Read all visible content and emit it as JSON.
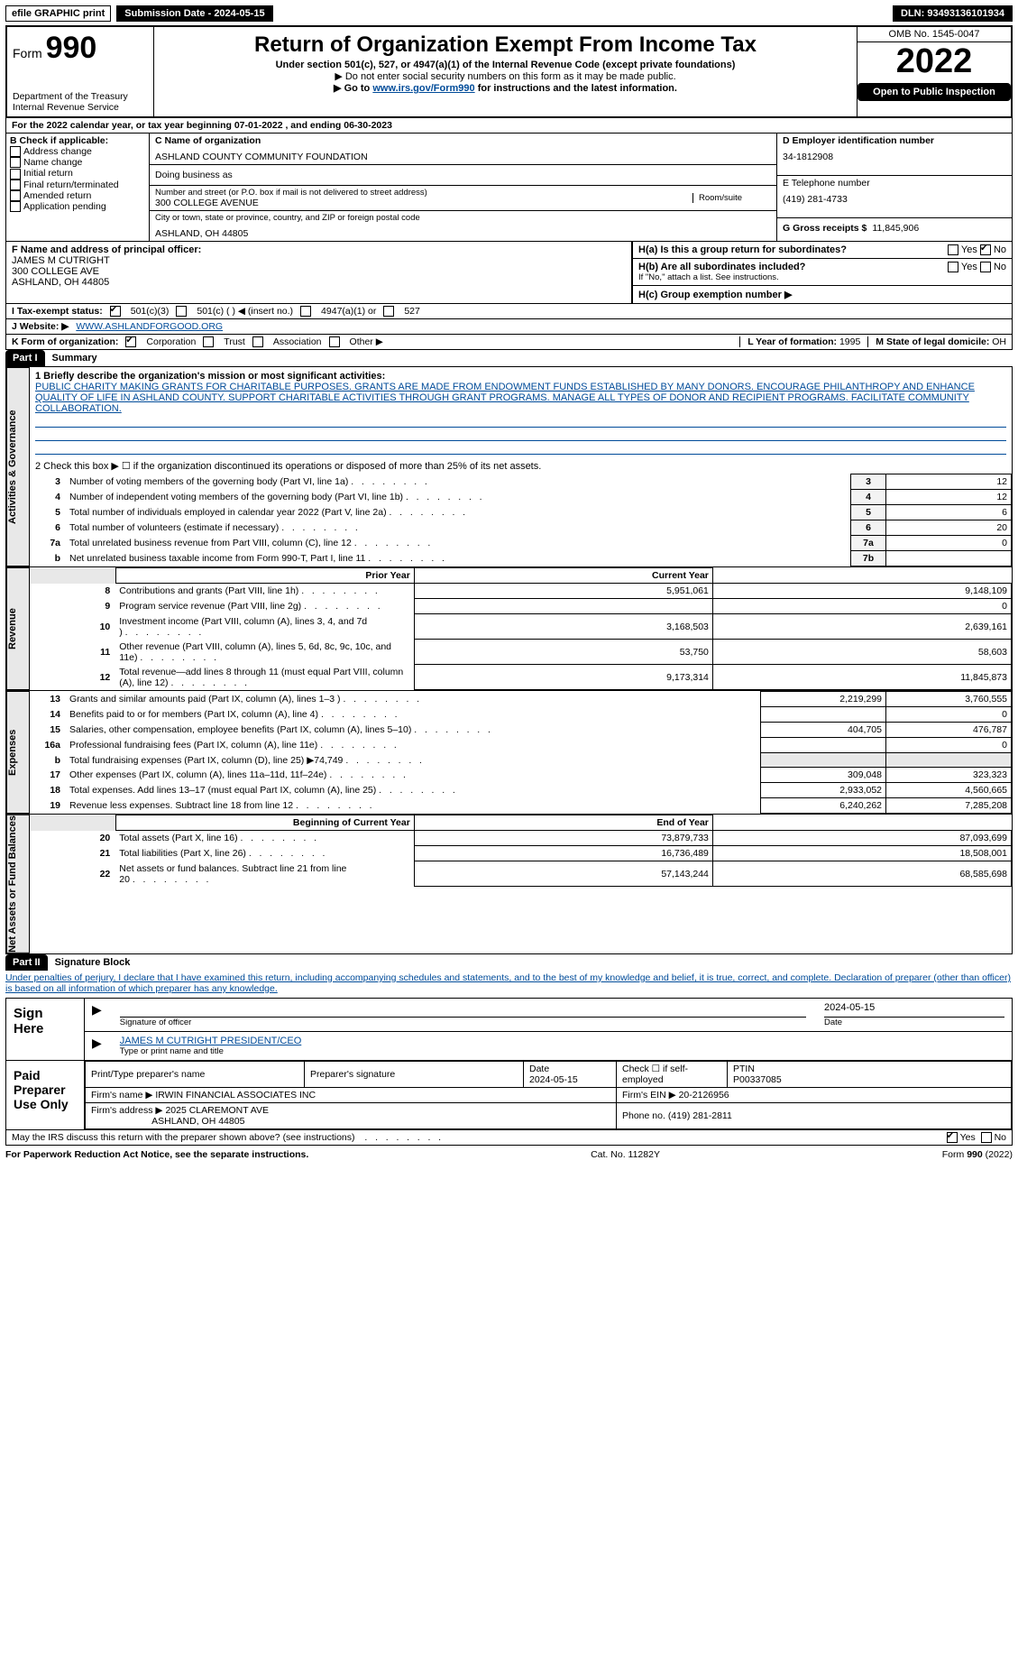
{
  "top": {
    "efile": "efile GRAPHIC print",
    "submission_label": "Submission Date - 2024-05-15",
    "dln_label": "DLN: 93493136101934"
  },
  "header": {
    "form_prefix": "Form",
    "form_num": "990",
    "title": "Return of Organization Exempt From Income Tax",
    "sub1": "Under section 501(c), 527, or 4947(a)(1) of the Internal Revenue Code (except private foundations)",
    "sub2": "▶ Do not enter social security numbers on this form as it may be made public.",
    "sub3_pre": "▶ Go to ",
    "sub3_link": "www.irs.gov/Form990",
    "sub3_post": " for instructions and the latest information.",
    "dept": "Department of the Treasury\nInternal Revenue Service",
    "omb": "OMB No. 1545-0047",
    "year": "2022",
    "open": "Open to Public Inspection"
  },
  "blockA": {
    "cal_line": "For the 2022 calendar year, or tax year beginning 07-01-2022   , and ending 06-30-2023",
    "check_label": "B Check if applicable:",
    "opts": [
      "Address change",
      "Name change",
      "Initial return",
      "Final return/terminated",
      "Amended return",
      "Application pending"
    ]
  },
  "blockC": {
    "name_label": "C Name of organization",
    "name": "ASHLAND COUNTY COMMUNITY FOUNDATION",
    "dba_label": "Doing business as",
    "addr_label": "Number and street (or P.O. box if mail is not delivered to street address)",
    "room_label": "Room/suite",
    "addr": "300 COLLEGE AVENUE",
    "city_label": "City or town, state or province, country, and ZIP or foreign postal code",
    "city": "ASHLAND, OH  44805"
  },
  "blockD": {
    "ein_label": "D Employer identification number",
    "ein": "34-1812908",
    "phone_label": "E Telephone number",
    "phone": "(419) 281-4733",
    "gross_label": "G Gross receipts $",
    "gross": "11,845,906"
  },
  "blockF": {
    "label": "F Name and address of principal officer:",
    "name": "JAMES M CUTRIGHT",
    "addr1": "300 COLLEGE AVE",
    "addr2": "ASHLAND, OH  44805"
  },
  "blockH": {
    "a_label": "H(a)  Is this a group return for subordinates?",
    "a_yes": "Yes",
    "a_no": "No",
    "b_label": "H(b)  Are all subordinates included?",
    "b_note": "If \"No,\" attach a list. See instructions.",
    "c_label": "H(c)  Group exemption number ▶"
  },
  "blockI": {
    "label": "I  Tax-exempt status:",
    "o1": "501(c)(3)",
    "o2": "501(c) (   ) ◀ (insert no.)",
    "o3": "4947(a)(1) or",
    "o4": "527"
  },
  "blockJ": {
    "label": "J  Website: ▶",
    "val": "WWW.ASHLANDFORGOOD.ORG"
  },
  "blockK": {
    "label": "K Form of organization:",
    "opts": [
      "Corporation",
      "Trust",
      "Association",
      "Other ▶"
    ],
    "l_label": "L Year of formation:",
    "l_val": "1995",
    "m_label": "M State of legal domicile:",
    "m_val": "OH"
  },
  "part1": {
    "hdr": "Part I",
    "title": "Summary",
    "q1_label": "1  Briefly describe the organization's mission or most significant activities:",
    "q1_text": "PUBLIC CHARITY MAKING GRANTS FOR CHARITABLE PURPOSES. GRANTS ARE MADE FROM ENDOWMENT FUNDS ESTABLISHED BY MANY DONORS. ENCOURAGE PHILANTHROPY AND ENHANCE QUALITY OF LIFE IN ASHLAND COUNTY. SUPPORT CHARITABLE ACTIVITIES THROUGH GRANT PROGRAMS. MANAGE ALL TYPES OF DONOR AND RECIPIENT PROGRAMS. FACILITATE COMMUNITY COLLABORATION.",
    "q2": "2   Check this box ▶ ☐  if the organization discontinued its operations or disposed of more than 25% of its net assets.",
    "rows_gov": [
      {
        "n": "3",
        "t": "Number of voting members of the governing body (Part VI, line 1a)",
        "box": "3",
        "v": "12"
      },
      {
        "n": "4",
        "t": "Number of independent voting members of the governing body (Part VI, line 1b)",
        "box": "4",
        "v": "12"
      },
      {
        "n": "5",
        "t": "Total number of individuals employed in calendar year 2022 (Part V, line 2a)",
        "box": "5",
        "v": "6"
      },
      {
        "n": "6",
        "t": "Total number of volunteers (estimate if necessary)",
        "box": "6",
        "v": "20"
      },
      {
        "n": "7a",
        "t": "Total unrelated business revenue from Part VIII, column (C), line 12",
        "box": "7a",
        "v": "0"
      },
      {
        "n": "b",
        "t": "Net unrelated business taxable income from Form 990-T, Part I, line 11",
        "box": "7b",
        "v": ""
      }
    ],
    "prior_hdr": "Prior Year",
    "curr_hdr": "Current Year",
    "rows_rev": [
      {
        "n": "8",
        "t": "Contributions and grants (Part VIII, line 1h)",
        "p": "5,951,061",
        "c": "9,148,109"
      },
      {
        "n": "9",
        "t": "Program service revenue (Part VIII, line 2g)",
        "p": "",
        "c": "0"
      },
      {
        "n": "10",
        "t": "Investment income (Part VIII, column (A), lines 3, 4, and 7d )",
        "p": "3,168,503",
        "c": "2,639,161"
      },
      {
        "n": "11",
        "t": "Other revenue (Part VIII, column (A), lines 5, 6d, 8c, 9c, 10c, and 11e)",
        "p": "53,750",
        "c": "58,603"
      },
      {
        "n": "12",
        "t": "Total revenue—add lines 8 through 11 (must equal Part VIII, column (A), line 12)",
        "p": "9,173,314",
        "c": "11,845,873"
      }
    ],
    "rows_exp": [
      {
        "n": "13",
        "t": "Grants and similar amounts paid (Part IX, column (A), lines 1–3 )",
        "p": "2,219,299",
        "c": "3,760,555"
      },
      {
        "n": "14",
        "t": "Benefits paid to or for members (Part IX, column (A), line 4)",
        "p": "",
        "c": "0"
      },
      {
        "n": "15",
        "t": "Salaries, other compensation, employee benefits (Part IX, column (A), lines 5–10)",
        "p": "404,705",
        "c": "476,787"
      },
      {
        "n": "16a",
        "t": "Professional fundraising fees (Part IX, column (A), line 11e)",
        "p": "",
        "c": "0"
      },
      {
        "n": "b",
        "t": "Total fundraising expenses (Part IX, column (D), line 25) ▶74,749",
        "p": "shade",
        "c": "shade"
      },
      {
        "n": "17",
        "t": "Other expenses (Part IX, column (A), lines 11a–11d, 11f–24e)",
        "p": "309,048",
        "c": "323,323"
      },
      {
        "n": "18",
        "t": "Total expenses. Add lines 13–17 (must equal Part IX, column (A), line 25)",
        "p": "2,933,052",
        "c": "4,560,665"
      },
      {
        "n": "19",
        "t": "Revenue less expenses. Subtract line 18 from line 12",
        "p": "6,240,262",
        "c": "7,285,208"
      }
    ],
    "beg_hdr": "Beginning of Current Year",
    "end_hdr": "End of Year",
    "rows_net": [
      {
        "n": "20",
        "t": "Total assets (Part X, line 16)",
        "p": "73,879,733",
        "c": "87,093,699"
      },
      {
        "n": "21",
        "t": "Total liabilities (Part X, line 26)",
        "p": "16,736,489",
        "c": "18,508,001"
      },
      {
        "n": "22",
        "t": "Net assets or fund balances. Subtract line 21 from line 20",
        "p": "57,143,244",
        "c": "68,585,698"
      }
    ],
    "side_gov": "Activities & Governance",
    "side_rev": "Revenue",
    "side_exp": "Expenses",
    "side_net": "Net Assets or Fund Balances"
  },
  "part2": {
    "hdr": "Part II",
    "title": "Signature Block",
    "decl": "Under penalties of perjury, I declare that I have examined this return, including accompanying schedules and statements, and to the best of my knowledge and belief, it is true, correct, and complete. Declaration of preparer (other than officer) is based on all information of which preparer has any knowledge.",
    "sign_here": "Sign Here",
    "sig_officer": "Signature of officer",
    "sig_date": "Date",
    "sig_date_v": "2024-05-15",
    "sig_name": "JAMES M CUTRIGHT  PRESIDENT/CEO",
    "sig_name_l": "Type or print name and title",
    "paid": "Paid Preparer Use Only",
    "p_name_l": "Print/Type preparer's name",
    "p_sig_l": "Preparer's signature",
    "p_date_l": "Date",
    "p_date_v": "2024-05-15",
    "p_self": "Check ☐ if self-employed",
    "p_ptin_l": "PTIN",
    "p_ptin_v": "P00337085",
    "firm_name_l": "Firm's name    ▶",
    "firm_name": "IRWIN FINANCIAL ASSOCIATES INC",
    "firm_ein_l": "Firm's EIN ▶",
    "firm_ein": "20-2126956",
    "firm_addr_l": "Firm's address ▶",
    "firm_addr1": "2025 CLAREMONT AVE",
    "firm_addr2": "ASHLAND, OH  44805",
    "phone_l": "Phone no.",
    "phone": "(419) 281-2811",
    "discuss": "May the IRS discuss this return with the preparer shown above? (see instructions)",
    "yes": "Yes",
    "no": "No"
  },
  "footer": {
    "pra": "For Paperwork Reduction Act Notice, see the separate instructions.",
    "cat": "Cat. No. 11282Y",
    "form": "Form 990 (2022)"
  }
}
